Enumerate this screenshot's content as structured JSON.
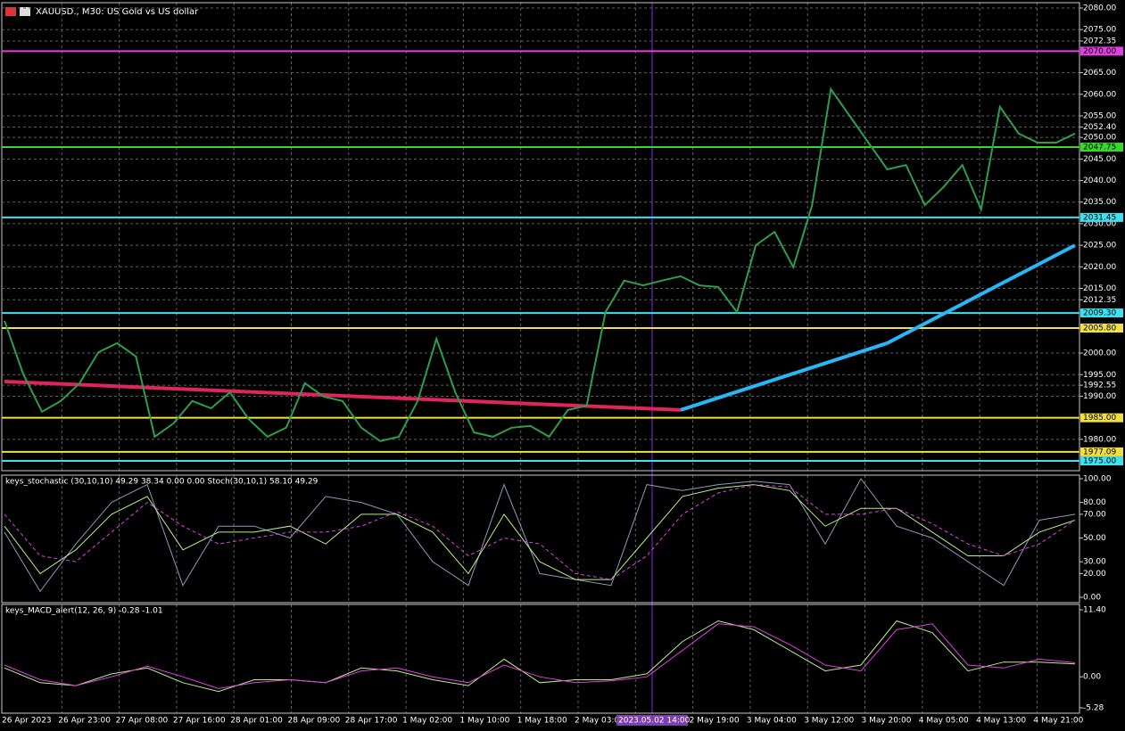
{
  "window": {
    "title": "XAUUSD., M30: US Gold vs US dollar"
  },
  "time_axis": {
    "categories": [
      "26 Apr 2023",
      "26 Apr 23:00",
      "27 Apr 08:00",
      "27 Apr 16:00",
      "28 Apr 01:00",
      "28 Apr 09:00",
      "28 Apr 17:00",
      "1 May 02:00",
      "1 May 10:00",
      "1 May 18:00",
      "2 May 03:00",
      null,
      "2 May 19:00",
      "3 May 04:00",
      "3 May 12:00",
      "3 May 20:00",
      "4 May 05:00",
      "4 May 13:00",
      "4 May 21:00"
    ],
    "crosshair_label": "2023.05.02 14:00"
  },
  "chart_data": [
    {
      "type": "line",
      "grid": true,
      "ylim": [
        1972.73,
        2081.24
      ],
      "yticks": [
        {
          "value": 2080,
          "label": "2080.00"
        },
        {
          "value": 2075,
          "label": "2075.00"
        },
        2072.35,
        {
          "value": 2065,
          "label": "2065.00"
        },
        {
          "value": 2060,
          "label": "2060.00"
        },
        {
          "value": 2055,
          "label": "2055.00"
        },
        {
          "value": 2052.4,
          "label": "2052.40"
        },
        {
          "value": 2050,
          "label": "2050.00"
        },
        {
          "value": 2045,
          "label": "2045.00"
        },
        {
          "value": 2040,
          "label": "2040.00"
        },
        {
          "value": 2035,
          "label": "2035.00"
        },
        {
          "value": 2030,
          "label": "2030.00"
        },
        {
          "value": 2025,
          "label": "2025.00"
        },
        {
          "value": 2020,
          "label": "2020.00"
        },
        {
          "value": 2015,
          "label": "2015.00"
        },
        2012.35,
        {
          "value": 2000,
          "label": "2000.00"
        },
        {
          "value": 1995,
          "label": "1995.00"
        },
        1992.55,
        {
          "value": 1990,
          "label": "1990.00"
        },
        {
          "value": 1980,
          "label": "1980.00"
        }
      ],
      "levels": [
        {
          "value": 2070,
          "label": "2070.00",
          "color": "#e040e0"
        },
        {
          "value": 2047.75,
          "label": "2047.75",
          "color": "#39d72e"
        },
        {
          "value": 2031.45,
          "label": "2031.45",
          "color": "#3fe0f0"
        },
        {
          "value": 2009.3,
          "label": "2009.30",
          "color": "#3fe0f0"
        },
        {
          "value": 2005.8,
          "label": "2005.80",
          "color": "#f0e040"
        },
        {
          "value": 1985,
          "label": "1985.00",
          "color": "#f0e040"
        },
        {
          "value": 1977.09,
          "label": "1977.09",
          "color": "#f0e040"
        },
        {
          "value": 1975,
          "label": "1975.00",
          "color": "#3fe0f0"
        }
      ],
      "series": [
        {
          "color": "#2e9e4a",
          "values": [
            2007.5,
            1995.1,
            1986.4,
            1988.9,
            1993.0,
            2000.2,
            2002.3,
            1999.2,
            1980.6,
            1983.7,
            1988.9,
            1987.2,
            1990.9,
            1984.7,
            1980.6,
            1982.7,
            1993.0,
            1989.9,
            1988.9,
            1982.7,
            1979.6,
            1980.6,
            1988.9,
            2003.3,
            1990.9,
            1981.6,
            1980.6,
            1982.7,
            1983.1,
            1980.6,
            1986.8,
            1987.8,
            2009.5,
            2016.8,
            2015.7,
            2016.8,
            2017.8,
            2015.7,
            2015.3,
            2009.5,
            2025.0,
            2028.1,
            2019.9,
            2034.3,
            2061.2,
            2055.0,
            2048.8,
            2042.6,
            2043.6,
            2034.3,
            2038.5,
            2043.6,
            2033.3,
            2057.1,
            2050.9,
            2048.8,
            2048.8,
            2050.9
          ]
        }
      ],
      "ma": {
        "x": [
          0,
          36,
          47,
          57
        ],
        "values": [
          1993.4,
          1986.8,
          2002.3,
          2025.0
        ],
        "colors": [
          "#e0245e",
          "#29b6f6",
          "#29b6f6"
        ]
      }
    },
    {
      "type": "line",
      "title": "keys_stochastic (30,10,10) 49.29 38.34 0.00 0.00 Stoch(30,10,1) 58.10 49.29",
      "ylim": [
        -4.5,
        103.0
      ],
      "yticks": [
        {
          "value": 100,
          "label": "100.00"
        },
        {
          "value": 80,
          "label": "80.00"
        },
        {
          "value": 70,
          "label": "70.00"
        },
        {
          "value": 50,
          "label": "50.00"
        },
        {
          "value": 30,
          "label": "30.00"
        },
        {
          "value": 20,
          "label": "20.00"
        },
        {
          "value": 0,
          "label": "0.00"
        }
      ],
      "series": [
        {
          "color": "#8a9bb8",
          "values": [
            55,
            5,
            45,
            80,
            95,
            10,
            60,
            60,
            50,
            85,
            80,
            70,
            30,
            10,
            95,
            20,
            15,
            10,
            95,
            90,
            95,
            98,
            95,
            45,
            100,
            60,
            50,
            30,
            10,
            65,
            70
          ]
        },
        {
          "color": "#b8f08a",
          "values": [
            60,
            20,
            40,
            70,
            85,
            40,
            55,
            55,
            60,
            45,
            70,
            70,
            55,
            20,
            70,
            30,
            15,
            15,
            50,
            85,
            92,
            95,
            90,
            60,
            75,
            75,
            55,
            35,
            35,
            55,
            65
          ]
        },
        {
          "color": "#e040e0",
          "dashed": true,
          "values": [
            70,
            35,
            30,
            55,
            80,
            60,
            45,
            50,
            55,
            55,
            60,
            72,
            60,
            35,
            50,
            45,
            20,
            15,
            35,
            70,
            88,
            95,
            93,
            70,
            70,
            75,
            62,
            45,
            35,
            45,
            65
          ]
        }
      ]
    },
    {
      "type": "line",
      "title": "keys_MACD_alert(12, 26, 9) -0.28 -1.01",
      "ylim": [
        -6.19,
        12.31
      ],
      "yticks": [
        {
          "value": 11.4,
          "label": "11.40"
        },
        {
          "value": 0,
          "label": "0.00"
        },
        -5.28
      ],
      "series": [
        {
          "color": "#b8f08a",
          "values": [
            1.5,
            -1.0,
            -1.5,
            0.5,
            1.5,
            -1.0,
            -2.5,
            -0.5,
            -0.5,
            -1.0,
            1.5,
            1.0,
            -0.5,
            -1.5,
            3.0,
            -1.0,
            -0.5,
            -0.5,
            0.5,
            6.0,
            9.5,
            8.0,
            4.5,
            1.0,
            2.0,
            9.5,
            7.5,
            1.0,
            2.5,
            2.5,
            2.2
          ]
        },
        {
          "color": "#e040e0",
          "values": [
            2.0,
            -0.5,
            -1.5,
            0,
            1.8,
            0,
            -2.0,
            -1.0,
            -0.5,
            -1.0,
            1.0,
            1.5,
            0,
            -1.0,
            2.0,
            0,
            -1.0,
            -0.7,
            0,
            4.5,
            9.0,
            8.5,
            5.5,
            2.0,
            1.0,
            8.0,
            9.0,
            2.0,
            1.5,
            3.0,
            2.4
          ]
        }
      ]
    }
  ]
}
